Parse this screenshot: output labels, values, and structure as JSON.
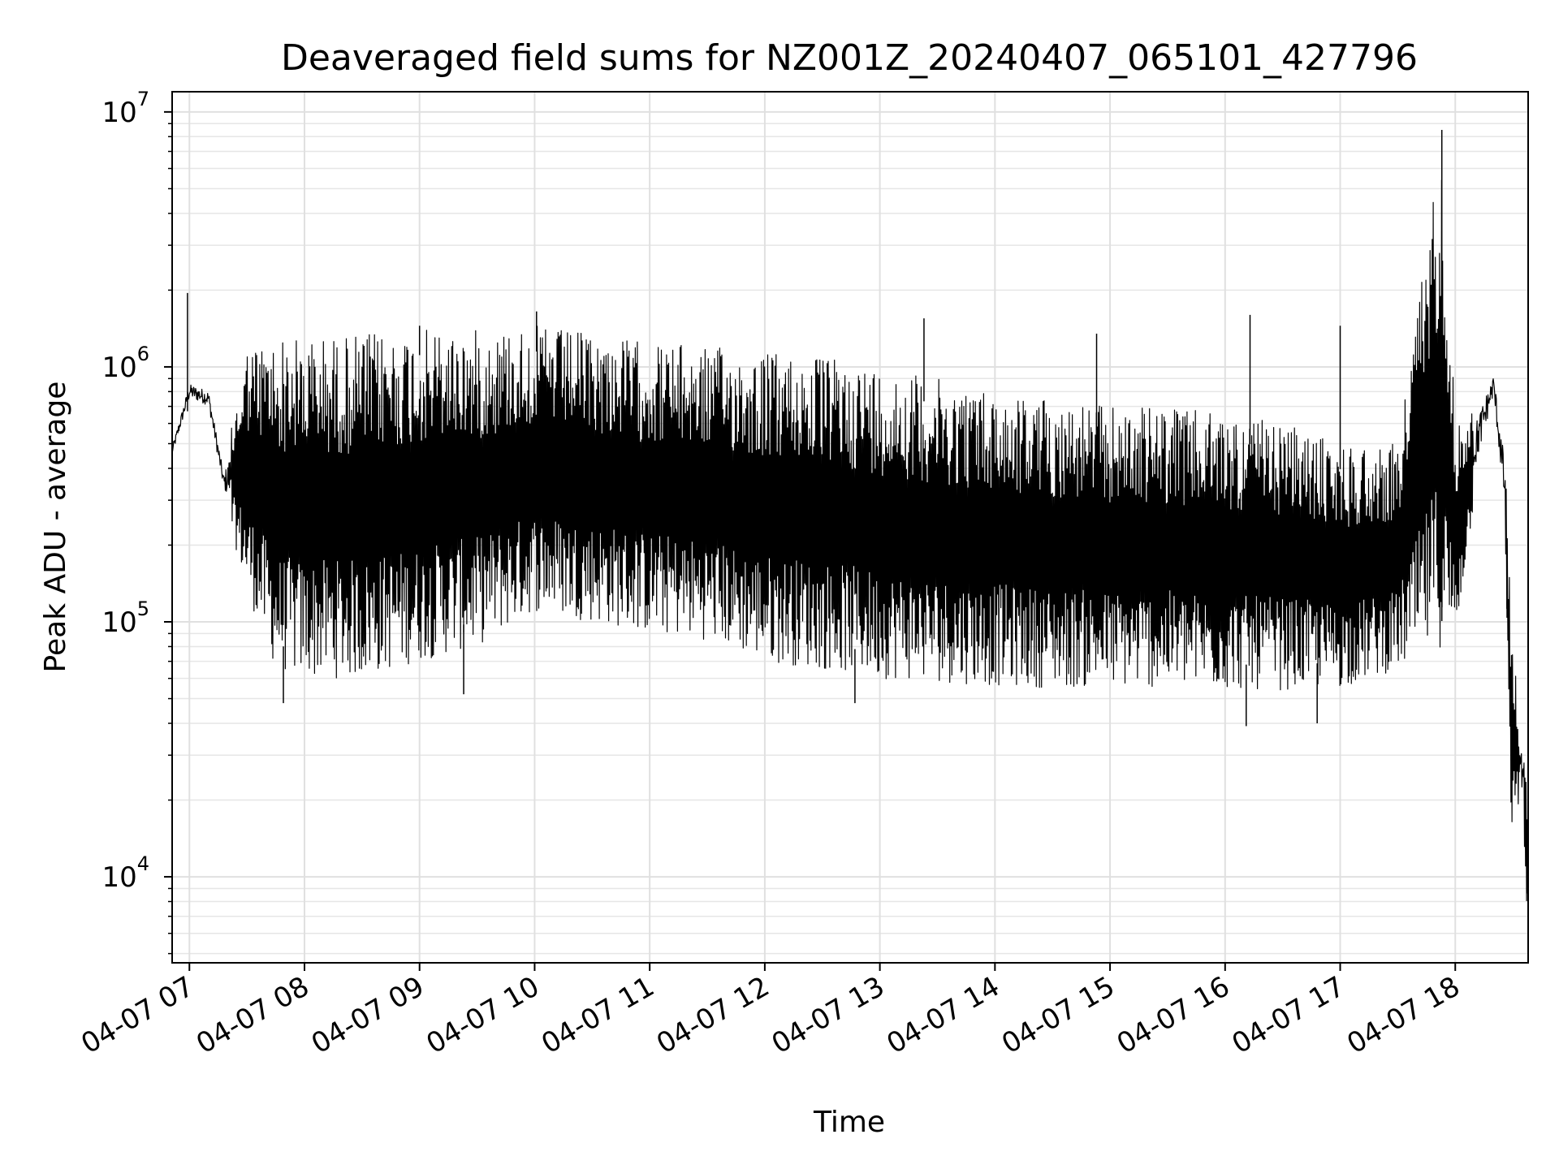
{
  "chart_data": {
    "type": "line",
    "title": "Deaveraged field sums for NZ001Z_20240407_065101_427796",
    "xlabel": "Time",
    "ylabel": "Peak ADU - average",
    "y_scale": "log",
    "ylim": [
      4600,
      12000000
    ],
    "xlim": [
      "2024-04-07 06:51",
      "2024-04-07 18:38"
    ],
    "grid": true,
    "x_ticks": [
      {
        "t": "2024-04-07 07:00",
        "label": "04-07 07"
      },
      {
        "t": "2024-04-07 08:00",
        "label": "04-07 08"
      },
      {
        "t": "2024-04-07 09:00",
        "label": "04-07 09"
      },
      {
        "t": "2024-04-07 10:00",
        "label": "04-07 10"
      },
      {
        "t": "2024-04-07 11:00",
        "label": "04-07 11"
      },
      {
        "t": "2024-04-07 12:00",
        "label": "04-07 12"
      },
      {
        "t": "2024-04-07 13:00",
        "label": "04-07 13"
      },
      {
        "t": "2024-04-07 14:00",
        "label": "04-07 14"
      },
      {
        "t": "2024-04-07 15:00",
        "label": "04-07 15"
      },
      {
        "t": "2024-04-07 16:00",
        "label": "04-07 16"
      },
      {
        "t": "2024-04-07 17:00",
        "label": "04-07 17"
      },
      {
        "t": "2024-04-07 18:00",
        "label": "04-07 18"
      }
    ],
    "y_ticks": [
      {
        "value": 10000,
        "base": "10",
        "exp": "4"
      },
      {
        "value": 100000,
        "base": "10",
        "exp": "5"
      },
      {
        "value": 1000000,
        "base": "10",
        "exp": "6"
      },
      {
        "value": 10000000,
        "base": "10",
        "exp": "7"
      }
    ],
    "series": [
      {
        "color": "#000000",
        "note_style": "rapidly oscillating trace; envelope shown as upper/lower bounds",
        "envelope": [
          {
            "t": "2024-04-07 06:51",
            "upper": 500000,
            "lower": 430000
          },
          {
            "t": "2024-04-07 07:00",
            "upper": 900000,
            "lower": 700000
          },
          {
            "t": "2024-04-07 07:10",
            "upper": 850000,
            "lower": 650000
          },
          {
            "t": "2024-04-07 07:18",
            "upper": 400000,
            "lower": 300000
          },
          {
            "t": "2024-04-07 07:30",
            "upper": 1200000,
            "lower": 130000
          },
          {
            "t": "2024-04-07 07:45",
            "upper": 1300000,
            "lower": 65000
          },
          {
            "t": "2024-04-07 08:00",
            "upper": 1300000,
            "lower": 60000
          },
          {
            "t": "2024-04-07 08:30",
            "upper": 1350000,
            "lower": 60000
          },
          {
            "t": "2024-04-07 09:00",
            "upper": 1400000,
            "lower": 70000
          },
          {
            "t": "2024-04-07 09:30",
            "upper": 1400000,
            "lower": 80000
          },
          {
            "t": "2024-04-07 10:00",
            "upper": 1450000,
            "lower": 110000
          },
          {
            "t": "2024-04-07 10:30",
            "upper": 1350000,
            "lower": 100000
          },
          {
            "t": "2024-04-07 11:00",
            "upper": 1250000,
            "lower": 90000
          },
          {
            "t": "2024-04-07 11:30",
            "upper": 1200000,
            "lower": 85000
          },
          {
            "t": "2024-04-07 12:00",
            "upper": 1150000,
            "lower": 70000
          },
          {
            "t": "2024-04-07 12:30",
            "upper": 1100000,
            "lower": 65000
          },
          {
            "t": "2024-04-07 13:00",
            "upper": 1000000,
            "lower": 60000
          },
          {
            "t": "2024-04-07 13:30",
            "upper": 900000,
            "lower": 58000
          },
          {
            "t": "2024-04-07 14:00",
            "upper": 800000,
            "lower": 56000
          },
          {
            "t": "2024-04-07 14:30",
            "upper": 750000,
            "lower": 55000
          },
          {
            "t": "2024-04-07 15:00",
            "upper": 700000,
            "lower": 55000
          },
          {
            "t": "2024-04-07 15:30",
            "upper": 700000,
            "lower": 55000
          },
          {
            "t": "2024-04-07 16:00",
            "upper": 650000,
            "lower": 54000
          },
          {
            "t": "2024-04-07 16:30",
            "upper": 600000,
            "lower": 54000
          },
          {
            "t": "2024-04-07 17:00",
            "upper": 500000,
            "lower": 55000
          },
          {
            "t": "2024-04-07 17:30",
            "upper": 500000,
            "lower": 65000
          },
          {
            "t": "2024-04-07 17:53",
            "upper": 8500000,
            "lower": 80000
          },
          {
            "t": "2024-04-07 18:00",
            "upper": 600000,
            "lower": 85000
          },
          {
            "t": "2024-04-07 18:10",
            "upper": 700000,
            "lower": 300000
          },
          {
            "t": "2024-04-07 18:20",
            "upper": 1000000,
            "lower": 700000
          },
          {
            "t": "2024-04-07 18:26",
            "upper": 500000,
            "lower": 200000
          },
          {
            "t": "2024-04-07 18:29",
            "upper": 100000,
            "lower": 14000
          },
          {
            "t": "2024-04-07 18:34",
            "upper": 40000,
            "lower": 20000
          },
          {
            "t": "2024-04-07 18:38",
            "upper": 20000,
            "lower": 6000
          }
        ],
        "spikes": [
          {
            "t": "2024-04-07 06:59",
            "value": 1950000
          },
          {
            "t": "2024-04-07 09:00",
            "value": 1450000
          },
          {
            "t": "2024-04-07 10:01",
            "value": 1650000
          },
          {
            "t": "2024-04-07 13:23",
            "value": 1550000
          },
          {
            "t": "2024-04-07 14:53",
            "value": 1350000
          },
          {
            "t": "2024-04-07 16:13",
            "value": 1600000
          },
          {
            "t": "2024-04-07 17:00",
            "value": 1450000
          },
          {
            "t": "2024-04-07 17:53",
            "value": 8500000
          },
          {
            "t": "2024-04-07 18:27",
            "value": 120000
          },
          {
            "t": "2024-04-07 12:47",
            "value": 48000
          },
          {
            "t": "2024-04-07 16:11",
            "value": 39000
          },
          {
            "t": "2024-04-07 16:48",
            "value": 40000
          },
          {
            "t": "2024-04-07 09:23",
            "value": 52000
          },
          {
            "t": "2024-04-07 07:49",
            "value": 48000
          }
        ]
      }
    ]
  }
}
